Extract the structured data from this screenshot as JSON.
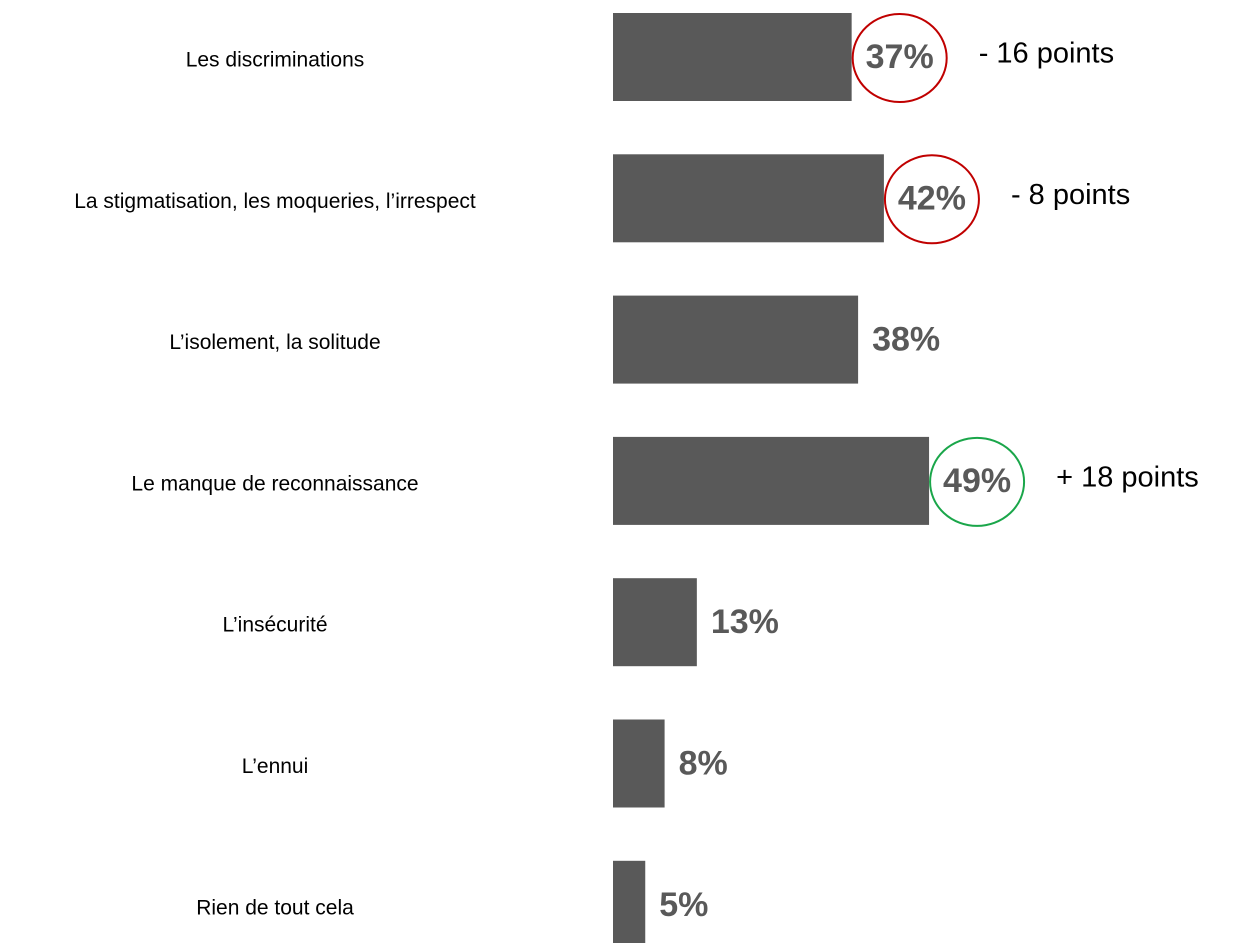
{
  "chart_data": {
    "type": "bar",
    "orientation": "horizontal",
    "categories": [
      "Les discriminations",
      "La stigmatisation, les moqueries, l’irrespect",
      "L’isolement, la solitude",
      "Le manque de reconnaissance",
      "L’insécurité",
      "L’ennui",
      "Rien de tout cela"
    ],
    "values": [
      37,
      42,
      38,
      49,
      13,
      8,
      5
    ],
    "value_labels": [
      "37%",
      "42%",
      "38%",
      "49%",
      "13%",
      "8%",
      "5%"
    ],
    "color": "#595959",
    "annotations": [
      "- 16 points",
      "- 8 points",
      null,
      "+ 18 points",
      null,
      null,
      null
    ],
    "annotation_colors": [
      "#c00000",
      "#c00000",
      null,
      "#1aa64a",
      null,
      null,
      null
    ]
  }
}
